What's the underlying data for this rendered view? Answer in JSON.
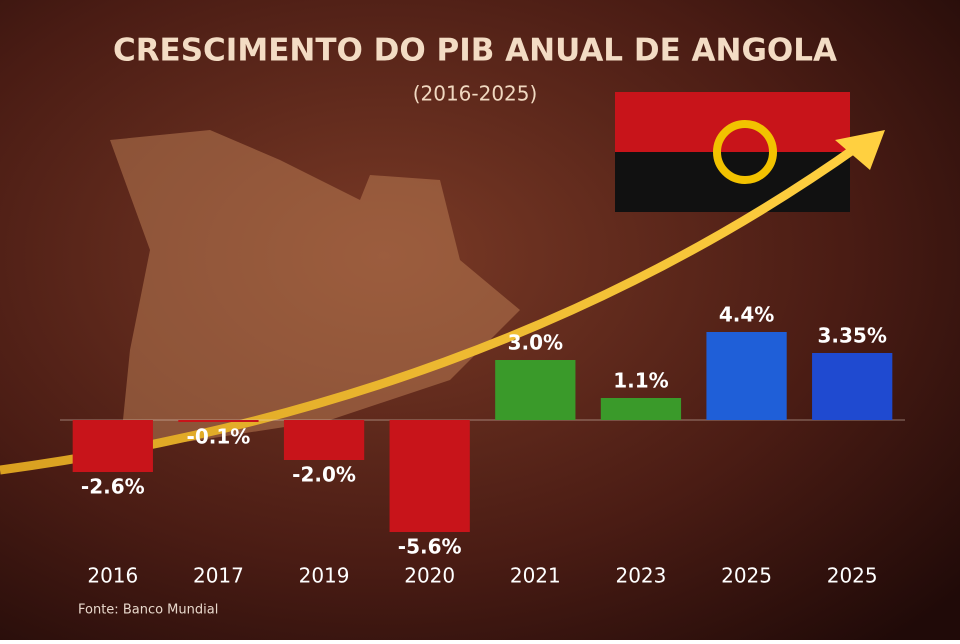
{
  "chart_data": {
    "type": "bar",
    "title": "CRESCIMENTO DO PIB ANUAL DE ANGOLA",
    "subtitle": "(2016-2025)",
    "categories": [
      "2016",
      "2017",
      "2019",
      "2020",
      "2021",
      "2023",
      "2025",
      "2025"
    ],
    "values": [
      -2.6,
      -0.1,
      -2.0,
      -5.6,
      3.0,
      1.1,
      4.4,
      3.35
    ],
    "value_labels": [
      "-2.6%",
      "-0.1%",
      "-2.0%",
      "-5.6%",
      "3.0%",
      "1.1%",
      "4.4%",
      "3.35%"
    ],
    "colors": [
      "#c8141a",
      "#c8141a",
      "#c8141a",
      "#c8141a",
      "#3a9a2a",
      "#3a9a2a",
      "#1f5fd8",
      "#1f4ad0"
    ],
    "source": "Fonte: Banco Mundial"
  }
}
